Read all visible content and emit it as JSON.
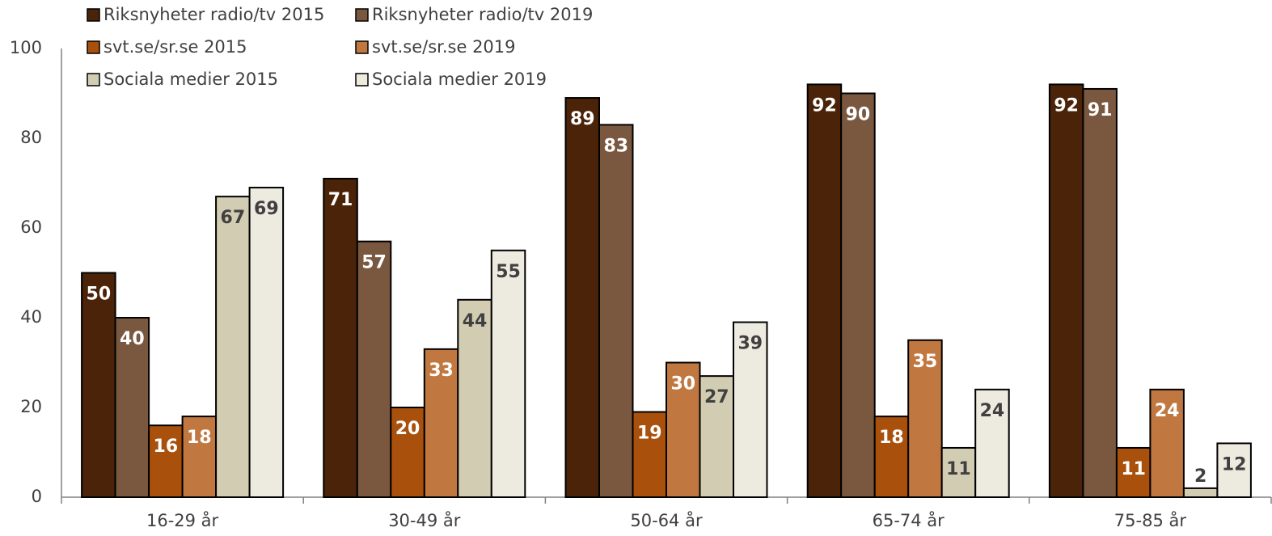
{
  "chart_data": {
    "type": "bar",
    "categories": [
      "16-29 år",
      "30-49 år",
      "50-64 år",
      "65-74 år",
      "75-85 år"
    ],
    "series": [
      {
        "name": "Riksnyheter radio/tv 2015",
        "color": "#4a2308",
        "values": [
          50,
          71,
          89,
          92,
          92
        ]
      },
      {
        "name": "Riksnyheter radio/tv 2019",
        "color": "#7a5840",
        "values": [
          40,
          57,
          83,
          90,
          91
        ]
      },
      {
        "name": "svt.se/sr.se 2015",
        "color": "#a8500c",
        "values": [
          16,
          20,
          19,
          18,
          11
        ]
      },
      {
        "name": "svt.se/sr.se 2019",
        "color": "#c07840",
        "values": [
          18,
          33,
          30,
          35,
          24
        ]
      },
      {
        "name": "Sociala medier 2015",
        "color": "#d2cdb2",
        "values": [
          67,
          44,
          27,
          11,
          2
        ]
      },
      {
        "name": "Sociala medier 2019",
        "color": "#edeae0",
        "values": [
          69,
          55,
          39,
          24,
          12
        ]
      }
    ],
    "ylim": [
      0,
      100
    ],
    "yticks": [
      0,
      20,
      40,
      60,
      80,
      100
    ],
    "grid": false,
    "legend": "top-left"
  }
}
